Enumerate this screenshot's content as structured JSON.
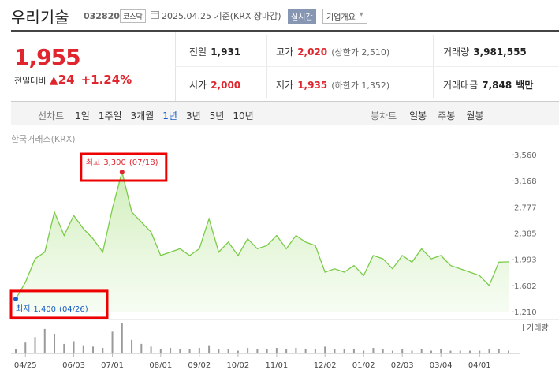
{
  "header": {
    "name": "우리기술",
    "code": "032820",
    "market": "코스닥",
    "date_text": "2025.04.25 기준(KRX 장마감)",
    "realtime": "실시간",
    "company_info": "기업개요"
  },
  "price": {
    "current": "1,955",
    "change_label": "전일대비",
    "change": "24",
    "change_pct": "+1.24%"
  },
  "stats": [
    [
      {
        "label": "전일",
        "value": "1,931"
      },
      {
        "label": "고가",
        "value": "2,020",
        "extra": "(상한가 2,510)"
      },
      {
        "label": "거래량",
        "value": "3,981,555"
      }
    ],
    [
      {
        "label": "시가",
        "value": "2,000"
      },
      {
        "label": "저가",
        "value": "1,935",
        "extra": "(하한가 1,352)"
      },
      {
        "label": "거래대금",
        "value": "7,848",
        "unit": "백만"
      }
    ]
  ],
  "tabs": {
    "line_label": "선차트",
    "line_tabs": [
      "1일",
      "1주일",
      "3개월",
      "1년",
      "3년",
      "5년",
      "10년"
    ],
    "selected": "1년",
    "candle_label": "봉차트",
    "candle_tabs": [
      "일봉",
      "주봉",
      "월봉"
    ]
  },
  "chart_data": {
    "type": "line",
    "source": "한국거래소(KRX)",
    "color": "#7acb48",
    "grid": false,
    "categories": [
      null,
      "04/25",
      null,
      null,
      null,
      null,
      "06/03",
      null,
      null,
      null,
      "07/01",
      null,
      null,
      null,
      null,
      "08/01",
      null,
      null,
      null,
      "09/02",
      null,
      null,
      null,
      "10/02",
      null,
      null,
      null,
      "11/01",
      null,
      null,
      null,
      null,
      "12/02",
      null,
      null,
      null,
      "01/02",
      null,
      null,
      null,
      "02/03",
      null,
      null,
      null,
      "03/04",
      null,
      null,
      null,
      "04/01",
      null,
      null,
      null
    ],
    "values": [
      1400,
      1650,
      2000,
      2100,
      2700,
      2350,
      2650,
      2450,
      2300,
      2100,
      2750,
      3300,
      2700,
      2550,
      2400,
      2050,
      2100,
      2150,
      2050,
      2150,
      2600,
      2100,
      2250,
      2050,
      2300,
      2150,
      2200,
      2350,
      2150,
      2350,
      2250,
      2200,
      1800,
      1850,
      1800,
      1900,
      1750,
      2050,
      2000,
      1850,
      2050,
      1950,
      2150,
      2000,
      2050,
      1900,
      1850,
      1800,
      1750,
      1600,
      1950,
      1955
    ],
    "volume_name": "거래량",
    "volume": [
      3,
      8,
      12,
      18,
      14,
      7,
      9,
      6,
      5,
      4,
      16,
      22,
      10,
      7,
      5,
      3,
      4,
      3,
      3,
      4,
      6,
      3,
      3,
      2,
      4,
      3,
      3,
      4,
      3,
      4,
      3,
      3,
      5,
      3,
      3,
      3,
      2,
      4,
      3,
      2,
      3,
      2,
      3,
      2,
      3,
      2,
      2,
      2,
      2,
      3,
      3,
      2
    ],
    "ylim": [
      1210,
      3560
    ],
    "yticks": [
      {
        "value": 3560,
        "label": "3,560"
      },
      {
        "value": 3168,
        "label": "3,168"
      },
      {
        "value": 2777,
        "label": "2,777"
      },
      {
        "value": 2385,
        "label": "2,385"
      },
      {
        "value": 1993,
        "label": "1,993"
      },
      {
        "value": 1602,
        "label": "1,602"
      },
      {
        "value": 1210,
        "label": "1,210"
      }
    ],
    "annotations": [
      {
        "text": "최고",
        "value": 3300,
        "value_label": "3,300",
        "date": "(07/18)",
        "color": "#e0252e"
      },
      {
        "text": "최저",
        "value": 1400,
        "value_label": "1,400",
        "date": "(04/26)",
        "color": "#1a5fc4"
      }
    ]
  }
}
